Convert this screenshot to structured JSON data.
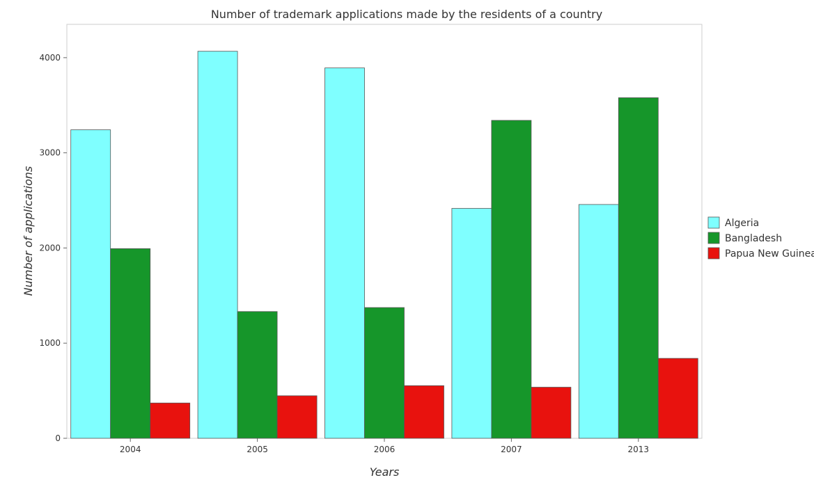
{
  "chart_data": {
    "type": "bar",
    "title": "Number of trademark applications made by the residents of a country",
    "xlabel": "Years",
    "ylabel": "Number of applications",
    "categories": [
      "2004",
      "2005",
      "2006",
      "2007",
      "2013"
    ],
    "ylim": [
      0,
      4350
    ],
    "yticks": [
      0,
      1000,
      2000,
      3000,
      4000
    ],
    "grid": false,
    "legend_position": "right",
    "series": [
      {
        "name": "Algeria",
        "color": "#7fffff",
        "values": [
          3242,
          4067,
          3892,
          2416,
          2457
        ]
      },
      {
        "name": "Bangladesh",
        "color": "#16962a",
        "values": [
          1993,
          1332,
          1374,
          3341,
          3579
        ]
      },
      {
        "name": "Papua New Guinea",
        "color": "#e8120e",
        "values": [
          371,
          447,
          553,
          537,
          840
        ]
      }
    ]
  }
}
